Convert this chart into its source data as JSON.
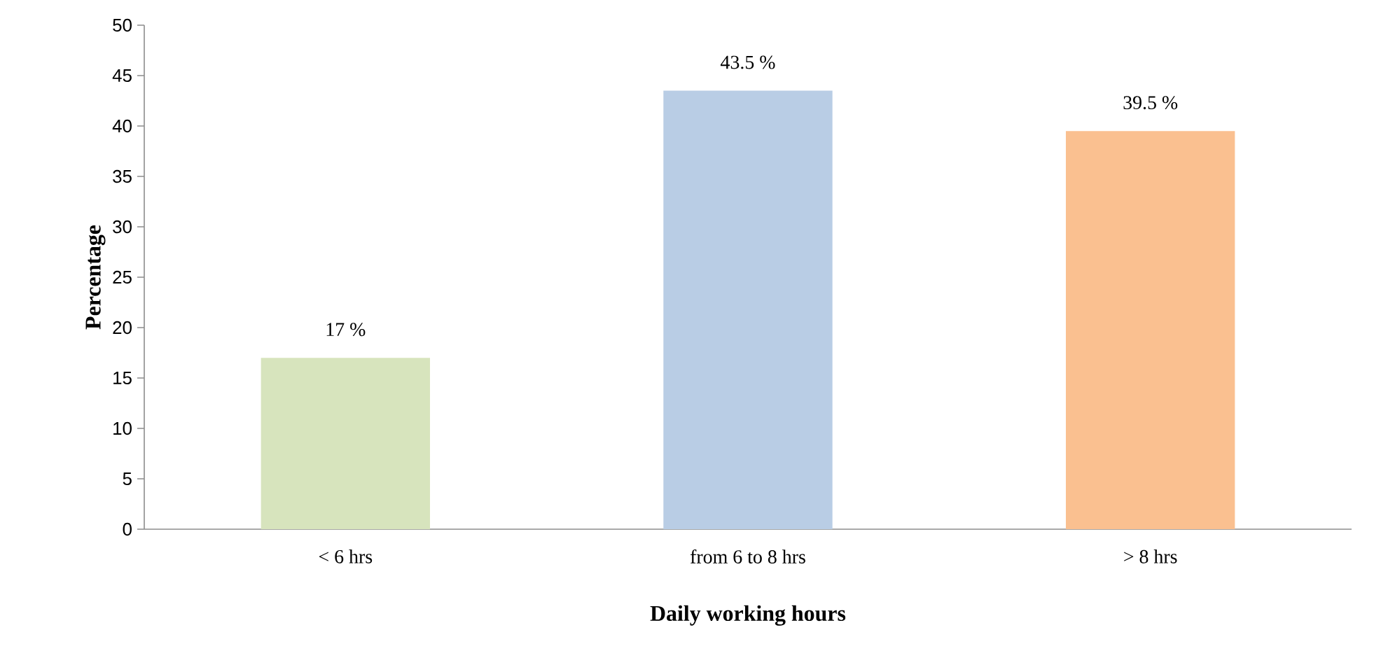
{
  "chart_data": {
    "type": "bar",
    "xlabel": "Daily working hours",
    "ylabel": "Percentage",
    "categories": [
      "< 6 hrs",
      "from 6 to 8 hrs",
      "> 8 hrs"
    ],
    "values": [
      17,
      43.5,
      39.5
    ],
    "colors": [
      "#d7e4bd",
      "#b9cde5",
      "#fac090"
    ],
    "value_labels": [
      "17 %",
      "43.5 %",
      "39.5 %"
    ],
    "ylim": [
      0,
      50
    ],
    "yticks": [
      0,
      5,
      10,
      15,
      20,
      25,
      30,
      35,
      40,
      45,
      50
    ]
  }
}
